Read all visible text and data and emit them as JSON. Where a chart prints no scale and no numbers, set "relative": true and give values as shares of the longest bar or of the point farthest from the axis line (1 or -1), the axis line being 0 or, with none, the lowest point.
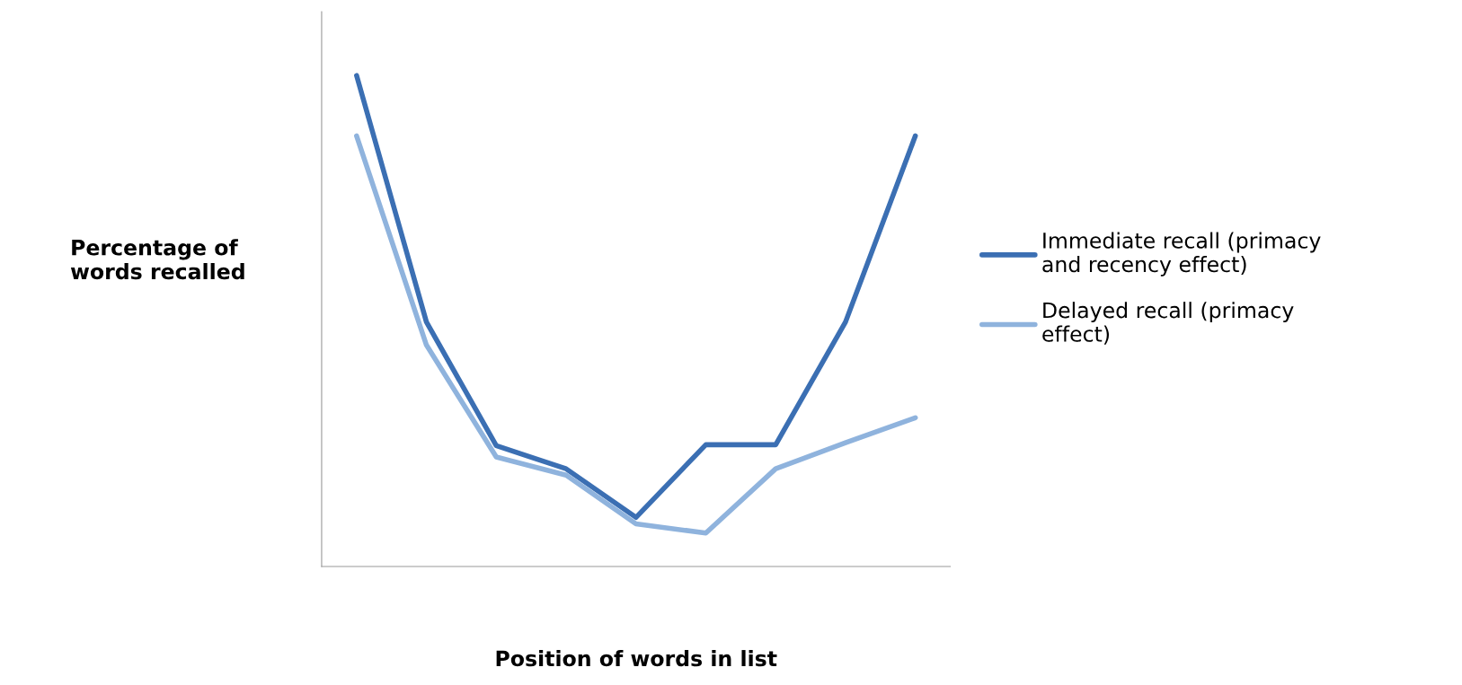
{
  "chart_data": {
    "type": "line",
    "relative": true,
    "xlabel": "Position of words in list",
    "ylabel": "Percentage of words recalled",
    "categories": [
      null,
      null,
      null,
      null,
      null,
      null,
      null,
      null,
      null
    ],
    "series": [
      {
        "name": "Immediate recall (primacy and recency effect)",
        "color": "#3b6fb3",
        "values": [
          1,
          0.498,
          0.246,
          0.199,
          0.1,
          0.248,
          0.248,
          0.498,
          0.877
        ]
      },
      {
        "name": "Delayed recall (primacy effect)",
        "color": "#8fb3dd",
        "values": [
          0.877,
          0.451,
          0.223,
          0.186,
          0.087,
          0.068,
          0.199,
          0.252,
          0.303
        ]
      }
    ],
    "legend": "right",
    "grid": false,
    "marker": "none",
    "line_style": "solid"
  }
}
